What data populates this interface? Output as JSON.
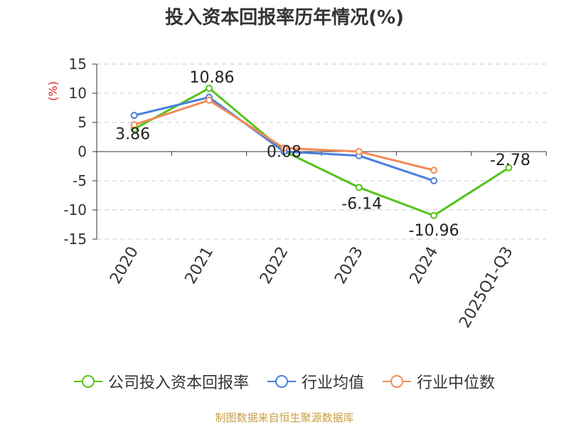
{
  "chart_data": {
    "type": "line",
    "title": "投入资本回报率历年情况(%)",
    "ylabel": "(%)",
    "categories": [
      "2020",
      "2021",
      "2022",
      "2023",
      "2024",
      "2025Q1-Q3"
    ],
    "ylim": [
      -15,
      15
    ],
    "yticks": [
      15,
      10,
      5,
      0,
      -5,
      -10,
      -15
    ],
    "grid": true,
    "legend_position": "bottom",
    "series": [
      {
        "name": "公司投入资本回报率",
        "color": "#52c41a",
        "values": [
          3.86,
          10.86,
          0.08,
          -6.14,
          -10.96,
          -2.78
        ],
        "labels": [
          "3.86",
          "10.86",
          "0.08",
          "-6.14",
          "-10.96",
          "-2.78"
        ]
      },
      {
        "name": "行业均值",
        "color": "#4a7fdb",
        "values": [
          6.2,
          9.3,
          0.0,
          -0.7,
          -5.0,
          null
        ]
      },
      {
        "name": "行业中位数",
        "color": "#f28a58",
        "values": [
          4.6,
          8.8,
          0.6,
          0.0,
          -3.2,
          null
        ]
      }
    ]
  },
  "source": "制图数据来自恒生聚源数据库"
}
